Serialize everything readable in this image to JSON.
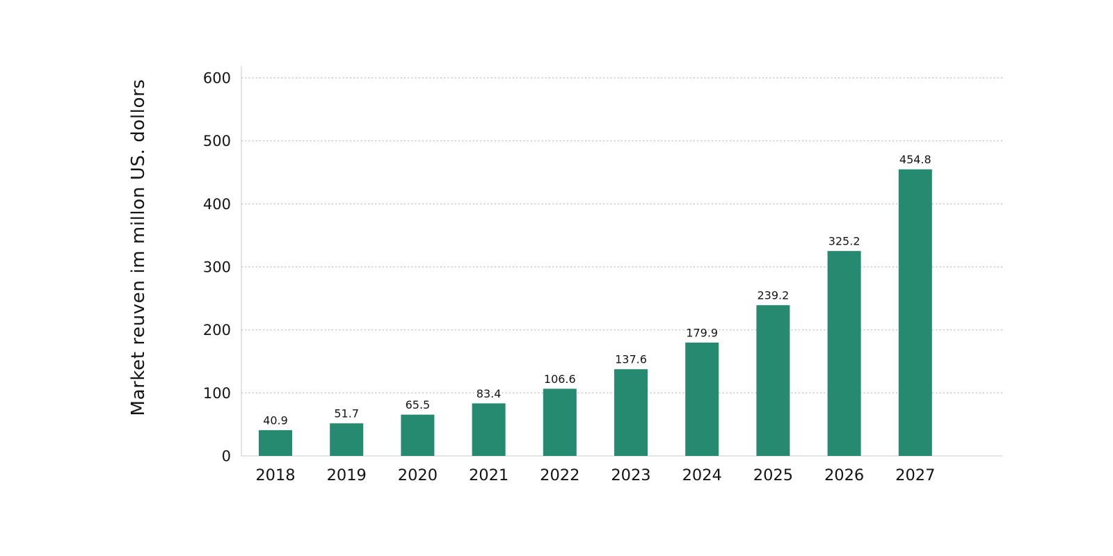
{
  "chart_data": {
    "type": "bar",
    "title": "",
    "xlabel": "",
    "ylabel": "Market reuven im millon US. dollors",
    "categories": [
      "2018",
      "2019",
      "2020",
      "2021",
      "2022",
      "2023",
      "2024",
      "2025",
      "2026",
      "2027"
    ],
    "values": [
      40.9,
      51.7,
      65.5,
      83.4,
      106.6,
      137.6,
      179.9,
      239.2,
      325.2,
      454.8
    ],
    "value_labels": [
      "40.9",
      "51.7",
      "65.5",
      "83.4",
      "106.6",
      "137.6",
      "179.9",
      "239.2",
      "325.2",
      "454.8"
    ],
    "ylim": [
      0,
      600
    ],
    "yticks": [
      0,
      100,
      200,
      300,
      400,
      500,
      600
    ],
    "grid": "horizontal-dotted",
    "legend": "none",
    "colors": {
      "bar": "#268a70",
      "gridline": "#b8b8b8",
      "axis_line": "#dcdcdc",
      "tick_text": "#141414",
      "value_text": "#141414"
    }
  }
}
